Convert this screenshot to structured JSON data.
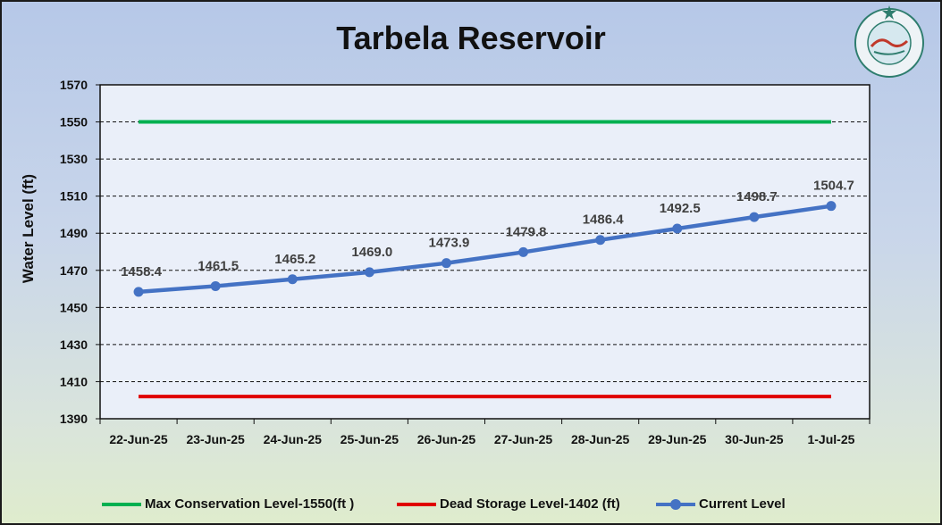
{
  "chart_data": {
    "type": "line",
    "title": "Tarbela Reservoir",
    "ylabel": "Water Level (ft)",
    "xlabel": "",
    "categories": [
      "22-Jun-25",
      "23-Jun-25",
      "24-Jun-25",
      "25-Jun-25",
      "26-Jun-25",
      "27-Jun-25",
      "28-Jun-25",
      "29-Jun-25",
      "30-Jun-25",
      "1-Jul-25"
    ],
    "ylim": [
      1390,
      1570
    ],
    "yticks": [
      1390,
      1410,
      1430,
      1450,
      1470,
      1490,
      1510,
      1530,
      1550,
      1570
    ],
    "grid": true,
    "legend": "bottom",
    "series": [
      {
        "name": "Max Conservation Level-1550(ft )",
        "color": "#00b050",
        "values": [
          1550,
          1550,
          1550,
          1550,
          1550,
          1550,
          1550,
          1550,
          1550,
          1550
        ]
      },
      {
        "name": "Dead Storage Level-1402 (ft)",
        "color": "#e00000",
        "values": [
          1402,
          1402,
          1402,
          1402,
          1402,
          1402,
          1402,
          1402,
          1402,
          1402
        ]
      },
      {
        "name": "Current Level",
        "color": "#4472c4",
        "markers": true,
        "values": [
          1458.4,
          1461.5,
          1465.2,
          1469.0,
          1473.9,
          1479.8,
          1486.4,
          1492.5,
          1498.7,
          1504.7
        ],
        "labels": [
          "1458.4",
          "1461.5",
          "1465.2",
          "1469.0",
          "1473.9",
          "1479.8",
          "1486.4",
          "1492.5",
          "1498.7",
          "1504.7"
        ]
      }
    ]
  },
  "logo": {
    "name": "pakistan-meteorological-department-logo"
  }
}
